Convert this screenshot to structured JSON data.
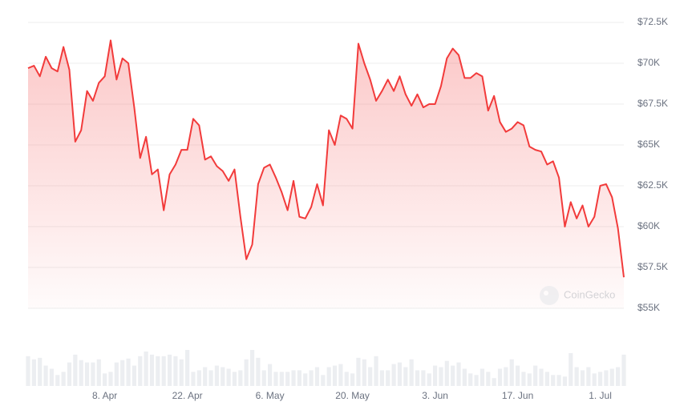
{
  "chart_data": {
    "type": "line",
    "color": "#f23b3b",
    "watermark": "CoinGecko",
    "categories": [
      null,
      null,
      null,
      null,
      null,
      null,
      null,
      null,
      null,
      null,
      null,
      null,
      null,
      "8. Apr",
      null,
      null,
      null,
      null,
      null,
      null,
      null,
      null,
      null,
      null,
      null,
      null,
      null,
      "22. Apr",
      null,
      null,
      null,
      null,
      null,
      null,
      null,
      null,
      null,
      null,
      null,
      null,
      null,
      "6. May",
      null,
      null,
      null,
      null,
      null,
      null,
      null,
      null,
      null,
      null,
      null,
      null,
      null,
      "20. May",
      null,
      null,
      null,
      null,
      null,
      null,
      null,
      null,
      null,
      null,
      null,
      null,
      null,
      "3. Jun",
      null,
      null,
      null,
      null,
      null,
      null,
      null,
      null,
      null,
      null,
      null,
      null,
      null,
      "17. Jun",
      null,
      null,
      null,
      null,
      null,
      null,
      null,
      null,
      null,
      null,
      null,
      null,
      null,
      "1. Jul",
      null,
      null,
      null,
      null
    ],
    "values": [
      69700,
      69850,
      69200,
      70400,
      69700,
      69500,
      71000,
      69600,
      65200,
      65900,
      68300,
      67700,
      68800,
      69200,
      71400,
      69000,
      70300,
      70000,
      67300,
      64200,
      65500,
      63200,
      63500,
      61000,
      63200,
      63800,
      64700,
      64700,
      66600,
      66200,
      64100,
      64300,
      63700,
      63400,
      62800,
      63500,
      60600,
      58000,
      58900,
      62600,
      63600,
      63800,
      63000,
      62100,
      61000,
      62800,
      60600,
      60500,
      61200,
      62600,
      61300,
      65900,
      65000,
      66800,
      66600,
      66000,
      71200,
      70000,
      69000,
      67700,
      68300,
      69000,
      68300,
      69200,
      68100,
      67400,
      68100,
      67300,
      67500,
      67500,
      68600,
      70300,
      70900,
      70500,
      69100,
      69100,
      69400,
      69200,
      67100,
      68000,
      66400,
      65800,
      66000,
      66400,
      66200,
      64900,
      64700,
      64600,
      63800,
      64000,
      63000,
      60000,
      61500,
      60500,
      61300,
      60000,
      60600,
      62500,
      62600,
      61800,
      59900,
      56900
    ],
    "volume": [
      38,
      34,
      36,
      26,
      22,
      14,
      18,
      30,
      40,
      33,
      30,
      30,
      34,
      16,
      18,
      30,
      33,
      35,
      26,
      38,
      44,
      40,
      38,
      38,
      40,
      38,
      34,
      46,
      18,
      20,
      24,
      20,
      26,
      24,
      22,
      18,
      20,
      34,
      46,
      36,
      20,
      28,
      18,
      18,
      18,
      20,
      20,
      16,
      20,
      24,
      14,
      24,
      26,
      28,
      18,
      16,
      36,
      34,
      24,
      38,
      20,
      20,
      28,
      30,
      24,
      34,
      20,
      20,
      16,
      26,
      24,
      32,
      26,
      30,
      22,
      16,
      14,
      22,
      18,
      10,
      22,
      24,
      34,
      26,
      18,
      16,
      26,
      22,
      18,
      14,
      14,
      12,
      42,
      24,
      20,
      24,
      16,
      18,
      20,
      22,
      24,
      40
    ],
    "ylim": [
      55000,
      72500
    ],
    "yticks": [
      {
        "value": 55000,
        "label": "$55K"
      },
      {
        "value": 57500,
        "label": "$57.5K"
      },
      {
        "value": 60000,
        "label": "$60K"
      },
      {
        "value": 62500,
        "label": "$62.5K"
      },
      {
        "value": 65000,
        "label": "$65K"
      },
      {
        "value": 67500,
        "label": "$67.5K"
      },
      {
        "value": 70000,
        "label": "$70K"
      },
      {
        "value": 72500,
        "label": "$72.5K"
      }
    ],
    "grid": true
  }
}
